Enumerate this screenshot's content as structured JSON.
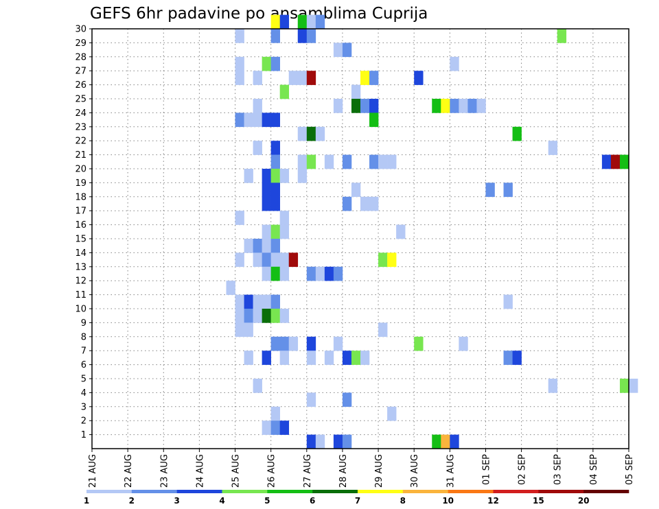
{
  "chart_data": {
    "type": "heatmap",
    "title": "GEFS 6hr padavine po ansamblima Cuprija",
    "xlabel": "",
    "ylabel": "",
    "x_tick_labels": [
      "21 AUG",
      "22 AUG",
      "23 AUG",
      "24 AUG",
      "25 AUG",
      "26 AUG",
      "27 AUG",
      "28 AUG",
      "29 AUG",
      "30 AUG",
      "31 AUG",
      "01 SEP",
      "02 SEP",
      "03 SEP",
      "04 SEP",
      "05 SEP"
    ],
    "y_tick_labels": [
      "1",
      "2",
      "3",
      "4",
      "5",
      "6",
      "7",
      "8",
      "9",
      "10",
      "11",
      "12",
      "13",
      "14",
      "15",
      "16",
      "17",
      "18",
      "19",
      "20",
      "21",
      "22",
      "23",
      "24",
      "25",
      "26",
      "27",
      "28",
      "29",
      "30"
    ],
    "x_range": [
      "21 AUG 00Z",
      "05 SEP 00Z"
    ],
    "x_step_hours": 6,
    "y_range": [
      0,
      30
    ],
    "grid": true,
    "legend": {
      "placement": "bottom",
      "tick_labels": [
        "1",
        "2",
        "3",
        "4",
        "5",
        "6",
        "7",
        "8",
        "10",
        "12",
        "15",
        "20"
      ],
      "colors": [
        "#b4c8f5",
        "#6490e8",
        "#1e46dc",
        "#78e650",
        "#14be14",
        "#0a6e0a",
        "#ffff14",
        "#fab43c",
        "#fa7814",
        "#d21e1e",
        "#a00a0a",
        "#640000"
      ]
    },
    "level_colors": {
      "1": "#b4c8f5",
      "2": "#6490e8",
      "3": "#1e46dc",
      "4": "#78e650",
      "5": "#14be14",
      "6": "#0a6e0a",
      "7": "#ffff14",
      "8": "#fab43c",
      "10": "#fa7814",
      "12": "#d21e1e",
      "15": "#a00a0a",
      "20": "#640000"
    },
    "cells_format": "[member, start_time, precipitation_mm]",
    "cells": [
      [
        30,
        "26 AUG 00Z",
        7
      ],
      [
        30,
        "26 AUG 06Z",
        3
      ],
      [
        30,
        "26 AUG 18Z",
        5
      ],
      [
        30,
        "27 AUG 00Z",
        1
      ],
      [
        30,
        "27 AUG 06Z",
        2
      ],
      [
        29,
        "25 AUG 00Z",
        1
      ],
      [
        29,
        "26 AUG 00Z",
        2
      ],
      [
        29,
        "26 AUG 18Z",
        3
      ],
      [
        29,
        "27 AUG 00Z",
        2
      ],
      [
        29,
        "03 SEP 00Z",
        4
      ],
      [
        28,
        "27 AUG 18Z",
        1
      ],
      [
        28,
        "28 AUG 00Z",
        2
      ],
      [
        27,
        "25 AUG 00Z",
        1
      ],
      [
        27,
        "25 AUG 18Z",
        4
      ],
      [
        27,
        "26 AUG 00Z",
        2
      ],
      [
        27,
        "31 AUG 00Z",
        1
      ],
      [
        26,
        "25 AUG 00Z",
        1
      ],
      [
        26,
        "25 AUG 12Z",
        1
      ],
      [
        26,
        "26 AUG 12Z",
        1
      ],
      [
        26,
        "26 AUG 18Z",
        1
      ],
      [
        26,
        "27 AUG 00Z",
        15
      ],
      [
        26,
        "28 AUG 12Z",
        7
      ],
      [
        26,
        "28 AUG 18Z",
        2
      ],
      [
        26,
        "30 AUG 00Z",
        3
      ],
      [
        25,
        "26 AUG 06Z",
        4
      ],
      [
        25,
        "28 AUG 06Z",
        1
      ],
      [
        24,
        "25 AUG 12Z",
        1
      ],
      [
        24,
        "27 AUG 18Z",
        1
      ],
      [
        24,
        "28 AUG 06Z",
        6
      ],
      [
        24,
        "28 AUG 12Z",
        2
      ],
      [
        24,
        "28 AUG 18Z",
        3
      ],
      [
        24,
        "30 AUG 12Z",
        5
      ],
      [
        24,
        "30 AUG 18Z",
        7
      ],
      [
        24,
        "31 AUG 00Z",
        2
      ],
      [
        24,
        "31 AUG 06Z",
        1
      ],
      [
        24,
        "31 AUG 12Z",
        2
      ],
      [
        24,
        "31 AUG 18Z",
        1
      ],
      [
        23,
        "25 AUG 00Z",
        2
      ],
      [
        23,
        "25 AUG 06Z",
        1
      ],
      [
        23,
        "25 AUG 12Z",
        1
      ],
      [
        23,
        "25 AUG 18Z",
        3
      ],
      [
        23,
        "26 AUG 00Z",
        3
      ],
      [
        23,
        "28 AUG 18Z",
        5
      ],
      [
        22,
        "26 AUG 18Z",
        1
      ],
      [
        22,
        "27 AUG 00Z",
        6
      ],
      [
        22,
        "27 AUG 06Z",
        1
      ],
      [
        22,
        "01 SEP 18Z",
        5
      ],
      [
        21,
        "25 AUG 12Z",
        1
      ],
      [
        21,
        "26 AUG 00Z",
        3
      ],
      [
        21,
        "02 SEP 18Z",
        1
      ],
      [
        20,
        "26 AUG 00Z",
        2
      ],
      [
        20,
        "26 AUG 18Z",
        1
      ],
      [
        20,
        "27 AUG 00Z",
        4
      ],
      [
        20,
        "27 AUG 12Z",
        1
      ],
      [
        20,
        "28 AUG 00Z",
        2
      ],
      [
        20,
        "28 AUG 18Z",
        2
      ],
      [
        20,
        "29 AUG 00Z",
        1
      ],
      [
        20,
        "29 AUG 06Z",
        1
      ],
      [
        20,
        "04 SEP 06Z",
        3
      ],
      [
        20,
        "04 SEP 12Z",
        15
      ],
      [
        20,
        "04 SEP 18Z",
        5
      ],
      [
        19,
        "25 AUG 06Z",
        1
      ],
      [
        19,
        "25 AUG 18Z",
        3
      ],
      [
        19,
        "26 AUG 00Z",
        4
      ],
      [
        19,
        "26 AUG 06Z",
        1
      ],
      [
        19,
        "26 AUG 18Z",
        1
      ],
      [
        18,
        "25 AUG 18Z",
        3
      ],
      [
        18,
        "26 AUG 00Z",
        3
      ],
      [
        18,
        "28 AUG 06Z",
        1
      ],
      [
        18,
        "01 SEP 00Z",
        2
      ],
      [
        18,
        "01 SEP 12Z",
        2
      ],
      [
        17,
        "25 AUG 18Z",
        3
      ],
      [
        17,
        "26 AUG 00Z",
        3
      ],
      [
        17,
        "28 AUG 00Z",
        2
      ],
      [
        17,
        "28 AUG 12Z",
        1
      ],
      [
        17,
        "28 AUG 18Z",
        1
      ],
      [
        16,
        "25 AUG 00Z",
        1
      ],
      [
        16,
        "26 AUG 06Z",
        1
      ],
      [
        15,
        "25 AUG 18Z",
        1
      ],
      [
        15,
        "26 AUG 00Z",
        4
      ],
      [
        15,
        "26 AUG 06Z",
        1
      ],
      [
        15,
        "29 AUG 12Z",
        1
      ],
      [
        14,
        "25 AUG 06Z",
        1
      ],
      [
        14,
        "25 AUG 12Z",
        2
      ],
      [
        14,
        "25 AUG 18Z",
        1
      ],
      [
        14,
        "26 AUG 00Z",
        2
      ],
      [
        13,
        "25 AUG 00Z",
        1
      ],
      [
        13,
        "25 AUG 12Z",
        1
      ],
      [
        13,
        "25 AUG 18Z",
        2
      ],
      [
        13,
        "26 AUG 00Z",
        1
      ],
      [
        13,
        "26 AUG 06Z",
        1
      ],
      [
        13,
        "26 AUG 12Z",
        15
      ],
      [
        13,
        "29 AUG 00Z",
        4
      ],
      [
        13,
        "29 AUG 06Z",
        7
      ],
      [
        12,
        "25 AUG 18Z",
        1
      ],
      [
        12,
        "26 AUG 00Z",
        5
      ],
      [
        12,
        "26 AUG 06Z",
        1
      ],
      [
        12,
        "27 AUG 00Z",
        2
      ],
      [
        12,
        "27 AUG 06Z",
        1
      ],
      [
        12,
        "27 AUG 12Z",
        3
      ],
      [
        12,
        "27 AUG 18Z",
        2
      ],
      [
        11,
        "24 AUG 18Z",
        1
      ],
      [
        10,
        "25 AUG 00Z",
        1
      ],
      [
        10,
        "25 AUG 06Z",
        3
      ],
      [
        10,
        "25 AUG 12Z",
        1
      ],
      [
        10,
        "25 AUG 18Z",
        1
      ],
      [
        10,
        "26 AUG 00Z",
        2
      ],
      [
        10,
        "01 SEP 12Z",
        1
      ],
      [
        9,
        "25 AUG 00Z",
        1
      ],
      [
        9,
        "25 AUG 06Z",
        2
      ],
      [
        9,
        "25 AUG 12Z",
        1
      ],
      [
        9,
        "25 AUG 18Z",
        6
      ],
      [
        9,
        "26 AUG 00Z",
        4
      ],
      [
        9,
        "26 AUG 06Z",
        1
      ],
      [
        8,
        "25 AUG 00Z",
        1
      ],
      [
        8,
        "25 AUG 06Z",
        1
      ],
      [
        8,
        "29 AUG 00Z",
        1
      ],
      [
        7,
        "26 AUG 00Z",
        2
      ],
      [
        7,
        "26 AUG 06Z",
        2
      ],
      [
        7,
        "26 AUG 12Z",
        1
      ],
      [
        7,
        "27 AUG 00Z",
        3
      ],
      [
        7,
        "27 AUG 18Z",
        1
      ],
      [
        7,
        "30 AUG 00Z",
        4
      ],
      [
        7,
        "31 AUG 06Z",
        1
      ],
      [
        6,
        "25 AUG 06Z",
        1
      ],
      [
        6,
        "25 AUG 18Z",
        3
      ],
      [
        6,
        "26 AUG 06Z",
        1
      ],
      [
        6,
        "27 AUG 00Z",
        1
      ],
      [
        6,
        "27 AUG 12Z",
        1
      ],
      [
        6,
        "28 AUG 00Z",
        3
      ],
      [
        6,
        "28 AUG 06Z",
        4
      ],
      [
        6,
        "28 AUG 12Z",
        1
      ],
      [
        6,
        "01 SEP 12Z",
        2
      ],
      [
        6,
        "01 SEP 18Z",
        3
      ],
      [
        4,
        "25 AUG 12Z",
        1
      ],
      [
        4,
        "02 SEP 18Z",
        1
      ],
      [
        4,
        "04 SEP 18Z",
        4
      ],
      [
        4,
        "05 SEP 00Z",
        1
      ],
      [
        3,
        "27 AUG 00Z",
        1
      ],
      [
        3,
        "28 AUG 00Z",
        2
      ],
      [
        2,
        "26 AUG 00Z",
        1
      ],
      [
        2,
        "29 AUG 06Z",
        1
      ],
      [
        1,
        "25 AUG 18Z",
        1
      ],
      [
        1,
        "26 AUG 00Z",
        2
      ],
      [
        1,
        "26 AUG 06Z",
        3
      ],
      [
        0,
        "27 AUG 00Z",
        3
      ],
      [
        0,
        "27 AUG 06Z",
        1
      ],
      [
        0,
        "27 AUG 18Z",
        3
      ],
      [
        0,
        "28 AUG 00Z",
        2
      ],
      [
        0,
        "30 AUG 12Z",
        5
      ],
      [
        0,
        "30 AUG 18Z",
        8
      ],
      [
        0,
        "31 AUG 00Z",
        3
      ]
    ]
  }
}
